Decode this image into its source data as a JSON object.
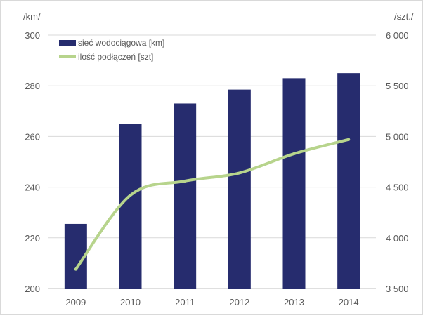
{
  "chart_data": {
    "type": "bar",
    "categories": [
      "2009",
      "2010",
      "2011",
      "2012",
      "2013",
      "2014"
    ],
    "series": [
      {
        "name": "sieć wodociągowa [km]",
        "kind": "bar",
        "axis": "left",
        "color": "#262C6E",
        "values": [
          225.5,
          265,
          273,
          278.5,
          283,
          285
        ]
      },
      {
        "name": "ilość podłączeń [szt]",
        "kind": "line",
        "axis": "right",
        "color": "#B7D48C",
        "values": [
          3690,
          4420,
          4560,
          4640,
          4830,
          4970
        ]
      }
    ],
    "ylabel": "/km/",
    "y2label": "/szt./",
    "ylim": [
      200,
      300
    ],
    "y2lim": [
      3500,
      6000
    ],
    "yticks": [
      "200",
      "220",
      "240",
      "260",
      "280",
      "300"
    ],
    "y2ticks": [
      "3 500",
      "4 000",
      "4 500",
      "5 000",
      "5 500",
      "6 000"
    ],
    "grid": true,
    "legend_position": "top-left"
  }
}
